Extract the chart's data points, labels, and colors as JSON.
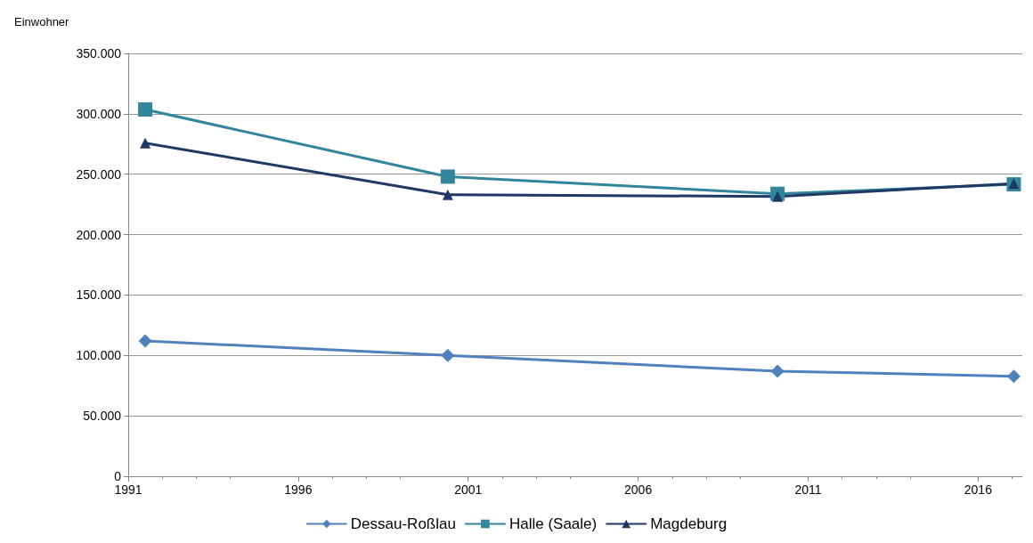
{
  "chart_data": {
    "type": "line",
    "ylabel": "Einwohner",
    "xlim": [
      1991,
      2017.3
    ],
    "xticks": [
      1991,
      1996,
      2001,
      2006,
      2011,
      2016
    ],
    "ylim": [
      0,
      350000
    ],
    "yticks": [
      {
        "value": 0,
        "label": "0"
      },
      {
        "value": 50000,
        "label": "50.000"
      },
      {
        "value": 100000,
        "label": "100.000"
      },
      {
        "value": 150000,
        "label": "150.000"
      },
      {
        "value": 200000,
        "label": "200.000"
      },
      {
        "value": 250000,
        "label": "250.000"
      },
      {
        "value": 300000,
        "label": "300.000"
      },
      {
        "value": 350000,
        "label": "350.000"
      }
    ],
    "x": [
      1991.5,
      2000.4,
      2010.1,
      2017.05
    ],
    "series": [
      {
        "name": "Dessau-Roßlau",
        "color": "#4f81bd",
        "marker": "diamond",
        "values": [
          112000,
          100000,
          87000,
          82700
        ]
      },
      {
        "name": "Halle (Saale)",
        "color": "#31859c",
        "marker": "square",
        "values": [
          303600,
          248000,
          233800,
          241600
        ]
      },
      {
        "name": "Magdeburg",
        "color": "#1f3864",
        "marker": "triangle",
        "values": [
          275800,
          233000,
          231600,
          242300
        ]
      }
    ],
    "grid": "y",
    "legend": "bottom",
    "line_style": "solid"
  }
}
